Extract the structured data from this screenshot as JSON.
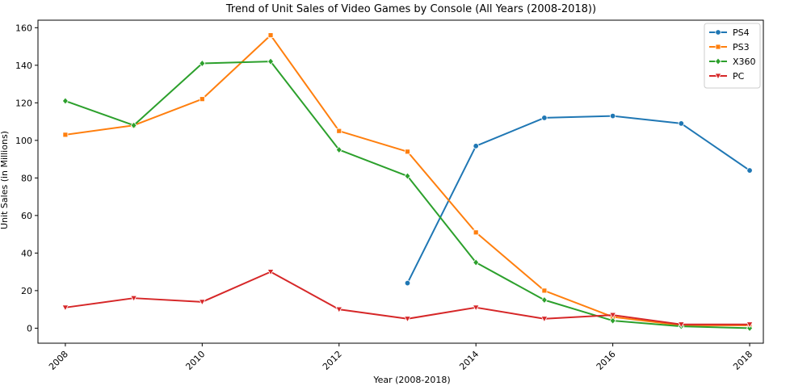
{
  "chart_data": {
    "type": "line",
    "title": "Trend of Unit Sales of Video Games by Console (All Years (2008-2018))",
    "xlabel": "Year (2008-2018)",
    "ylabel": "Unit Sales (in Millions)",
    "xlim": [
      2007.6,
      2018.2
    ],
    "ylim": [
      -8,
      164
    ],
    "xticks": [
      2008,
      2010,
      2012,
      2014,
      2016,
      2018
    ],
    "yticks": [
      0,
      20,
      40,
      60,
      80,
      100,
      120,
      140,
      160
    ],
    "grid": false,
    "legend_position": "top-right",
    "series": [
      {
        "name": "PS4",
        "color": "#1f77b4",
        "marker": "circle",
        "x": [
          2013,
          2014,
          2015,
          2016,
          2017,
          2018
        ],
        "y": [
          24,
          97,
          112,
          113,
          109,
          84
        ]
      },
      {
        "name": "PS3",
        "color": "#ff7f0e",
        "marker": "square",
        "x": [
          2008,
          2009,
          2010,
          2011,
          2012,
          2013,
          2014,
          2015,
          2016,
          2017,
          2018
        ],
        "y": [
          103,
          108,
          122,
          156,
          105,
          94,
          51,
          20,
          6,
          1.5,
          1.5
        ]
      },
      {
        "name": "X360",
        "color": "#2ca02c",
        "marker": "diamond",
        "x": [
          2008,
          2009,
          2010,
          2011,
          2012,
          2013,
          2014,
          2015,
          2016,
          2017,
          2018
        ],
        "y": [
          121,
          108,
          141,
          142,
          95,
          81,
          35,
          15,
          4,
          1,
          0
        ]
      },
      {
        "name": "PC",
        "color": "#d62728",
        "marker": "triangle-down",
        "x": [
          2008,
          2009,
          2010,
          2011,
          2012,
          2013,
          2014,
          2015,
          2016,
          2017,
          2018
        ],
        "y": [
          11,
          16,
          14,
          30,
          10,
          5,
          11,
          5,
          7,
          2,
          2
        ]
      }
    ]
  }
}
